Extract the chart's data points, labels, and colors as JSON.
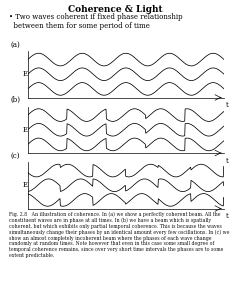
{
  "title": "Coherence & Light",
  "bullet": "• Two waves coherent if fixed phase relationship\n  between them for some period of time",
  "panel_labels": [
    "(a)",
    "(b)",
    "(c)"
  ],
  "xlabel": "t",
  "ylabel": "E",
  "fig_caption": "Fig. 2.8   An illustration of coherence. In (a) we show a perfectly coherent beam. All the constituent waves are in phase at all times. In (b) we have a beam which is spatially coherent, but which exhibits only partial temporal coherence. This is because the waves simultaneously change their phases by an identical amount every few oscillations. In (c) we show an almost completely incoherent beam where the phases of each wave change randomly at random times. Note however that even in this case some small degree of temporal coherence remains, since over very short time intervals the phases are to some extent predictable.",
  "background": "#ffffff",
  "wave_color": "#000000",
  "num_waves": 3,
  "freq": 2.0,
  "amplitude": 0.28,
  "wave_offsets": [
    0.65,
    0.0,
    -0.65
  ]
}
